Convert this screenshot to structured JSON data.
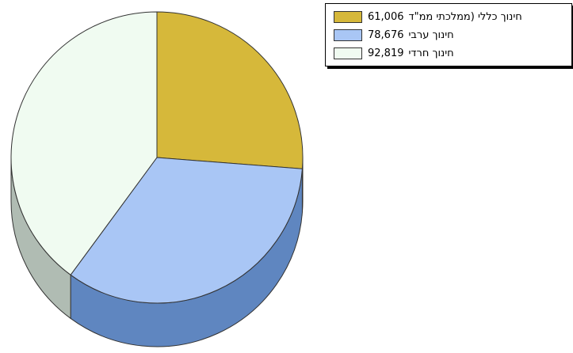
{
  "chart_data": {
    "type": "pie",
    "style": "3d",
    "legend_position": "top-right",
    "slices": [
      {
        "label": "חינוך כללי (ממלכתי ממ\"ד",
        "value": 61006,
        "display_value": "61,006",
        "color": "#d6b83a",
        "side_color": "#8a7520"
      },
      {
        "label": "חינוך ערבי",
        "value": 78676,
        "display_value": "78,676",
        "color": "#a9c6f5",
        "side_color": "#5f86c0"
      },
      {
        "label": "חינוך חרדי",
        "value": 92819,
        "display_value": "92,819",
        "color": "#f0fbf1",
        "side_color": "#b0bcb3"
      }
    ]
  }
}
